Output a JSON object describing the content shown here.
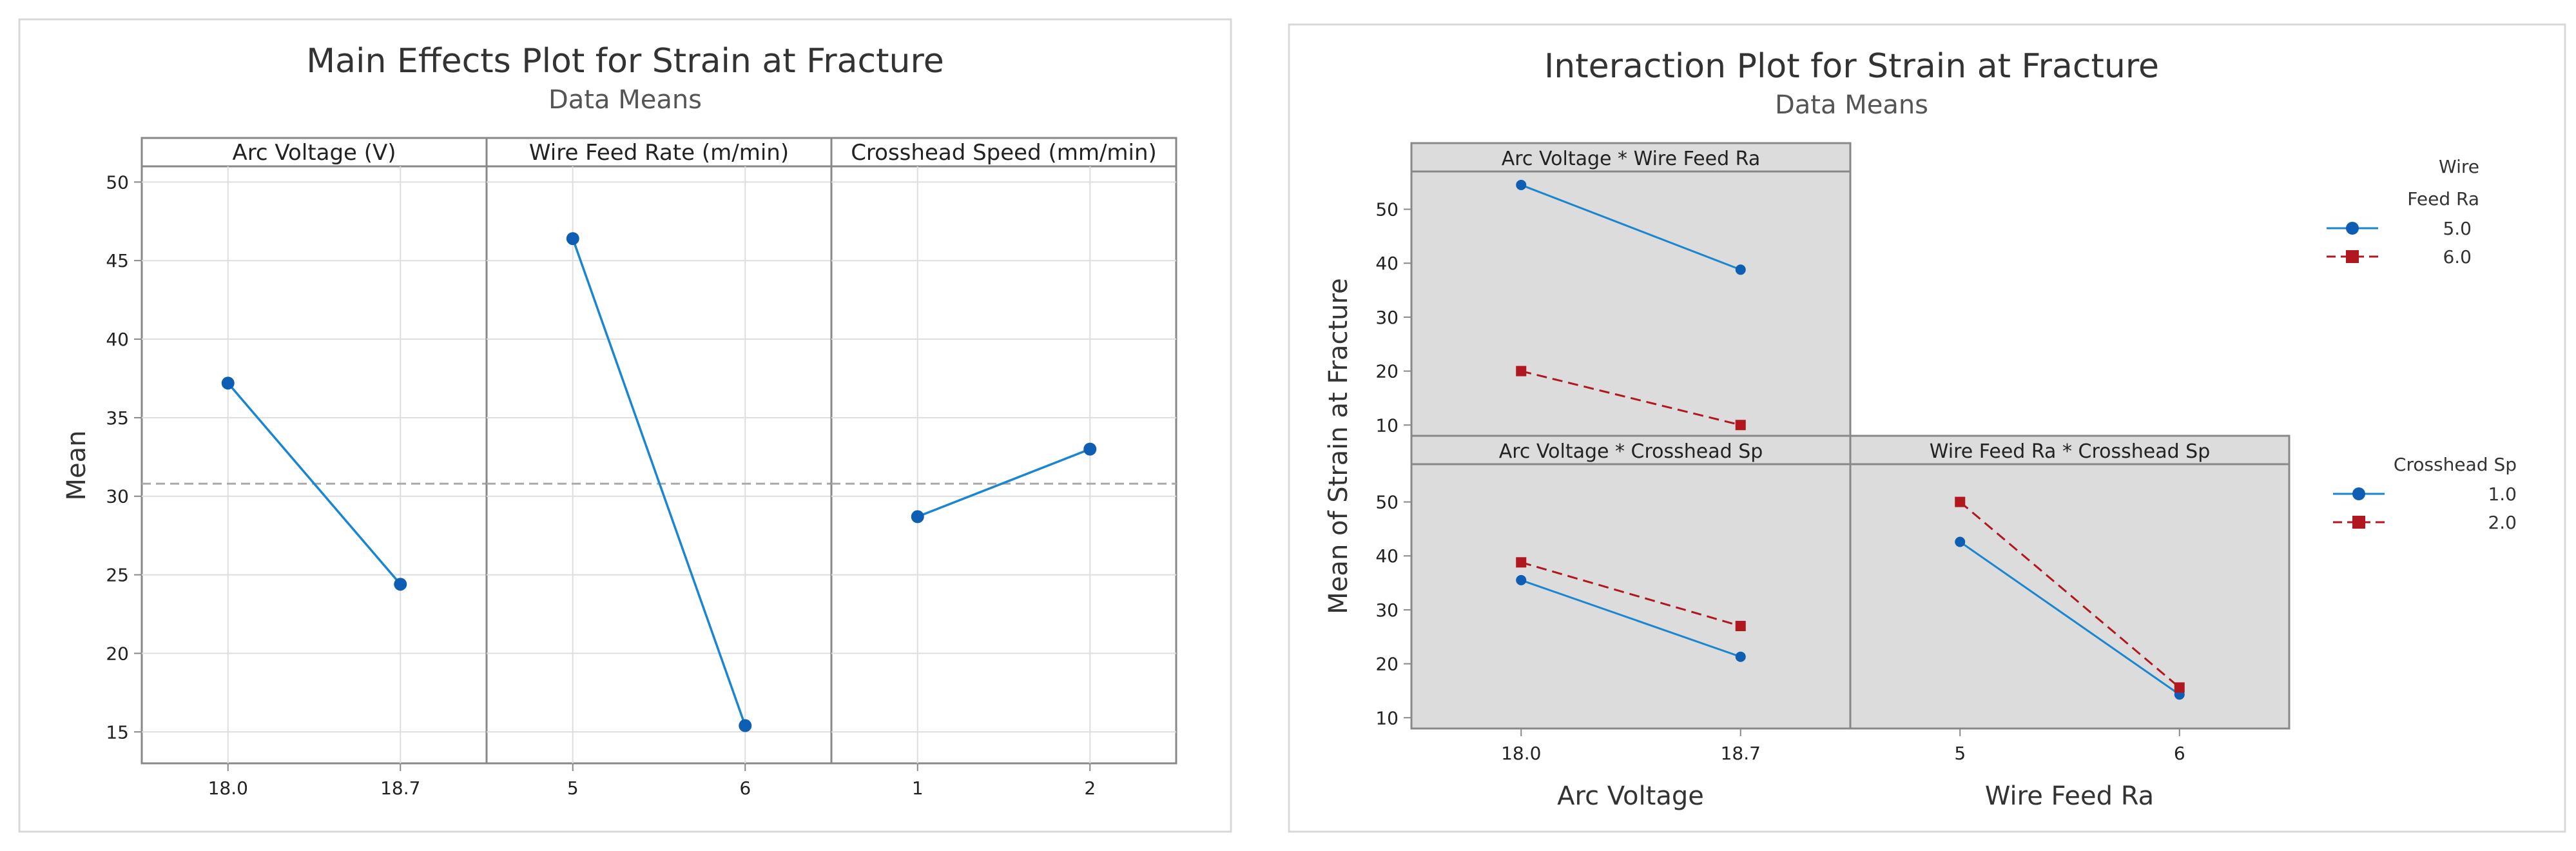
{
  "chart_data": [
    {
      "type": "line",
      "title": "Main Effects Plot for Strain at Fracture",
      "subtitle": "Data Means",
      "ylabel": "Mean",
      "ylim": [
        13,
        51
      ],
      "yticks": [
        15,
        20,
        25,
        30,
        35,
        40,
        45,
        50
      ],
      "reference_line": 30.8,
      "grid": true,
      "panels": [
        {
          "label": "Arc Voltage (V)",
          "categories": [
            "18.0",
            "18.7"
          ],
          "values": [
            37.2,
            24.4
          ]
        },
        {
          "label": "Wire Feed Rate (m/min)",
          "categories": [
            "5",
            "6"
          ],
          "values": [
            46.4,
            15.4
          ]
        },
        {
          "label": "Crosshead Speed (mm/min)",
          "categories": [
            "1",
            "2"
          ],
          "values": [
            28.7,
            33.0
          ]
        }
      ]
    },
    {
      "type": "line",
      "title": "Interaction Plot for Strain at Fracture",
      "subtitle": "Data Means",
      "ylabel": "Mean of Strain at Fracture",
      "ylim": [
        8,
        57
      ],
      "yticks": [
        10,
        20,
        30,
        40,
        50
      ],
      "panels": [
        {
          "label": "Arc Voltage * Wire Feed Ra",
          "categories": [
            "18.0",
            "18.7"
          ],
          "series": [
            {
              "name": "5.0",
              "values": [
                54.5,
                38.8
              ]
            },
            {
              "name": "6.0",
              "values": [
                20.0,
                10.0
              ]
            }
          ]
        },
        {
          "label": "Arc Voltage * Crosshead Sp",
          "categories": [
            "18.0",
            "18.7"
          ],
          "series": [
            {
              "name": "1.0",
              "values": [
                35.5,
                21.3
              ]
            },
            {
              "name": "2.0",
              "values": [
                38.8,
                27.0
              ]
            }
          ]
        },
        {
          "label": "Wire Feed Ra * Crosshead Sp",
          "categories": [
            "5",
            "6"
          ],
          "series": [
            {
              "name": "1.0",
              "values": [
                42.6,
                14.3
              ]
            },
            {
              "name": "2.0",
              "values": [
                50.0,
                15.6
              ]
            }
          ]
        }
      ],
      "xlabels": [
        "Arc Voltage",
        "Wire Feed Ra"
      ],
      "legends": [
        {
          "title_lines": [
            "Wire",
            "Feed Ra"
          ],
          "entries": [
            "5.0",
            "6.0"
          ]
        },
        {
          "title_lines": [
            "Crosshead Sp"
          ],
          "entries": [
            "1.0",
            "2.0"
          ]
        }
      ]
    }
  ],
  "colors": {
    "series1": "#0E5FB4",
    "series1_line": "#1A86D0",
    "series2": "#B0171F",
    "frame": "#888888",
    "grid": "#DEDEDE",
    "ref": "#AAAAAA",
    "panel_bg": "#DCDCDC"
  }
}
